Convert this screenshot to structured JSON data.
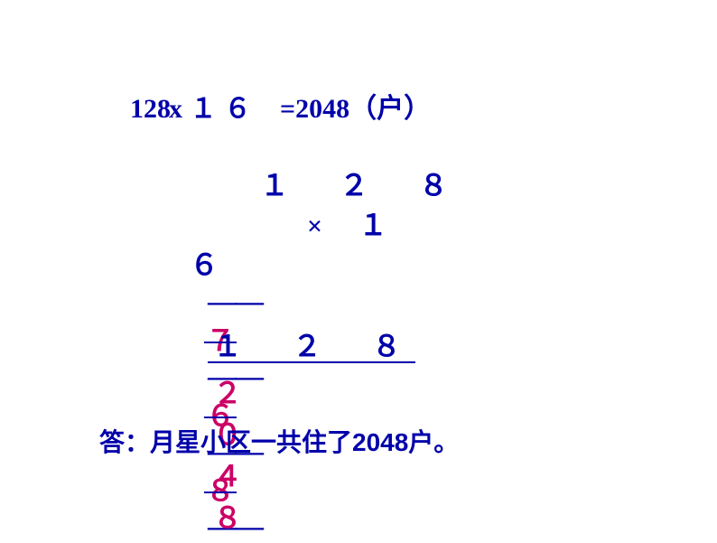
{
  "equation": {
    "num1": "128",
    "op": "x",
    "num2_1": "１",
    "num2_2": "６",
    "equals": "=",
    "result": "2048",
    "unit": "（户）"
  },
  "multiplication": {
    "row1": "１ ２ ８",
    "multiply_sign": "×",
    "row2_one": "１",
    "row3_six": "６",
    "partial1_d1": "７",
    "partial1_d2": "６",
    "partial1_d3": "８",
    "partial2": "１ ２  ８",
    "result": "２ ０  ４  ８"
  },
  "colors": {
    "primary": "#0000aa",
    "accent": "#cc0066",
    "background": "#ffffff"
  },
  "answer": "答：月星小区一共住了2048户。"
}
